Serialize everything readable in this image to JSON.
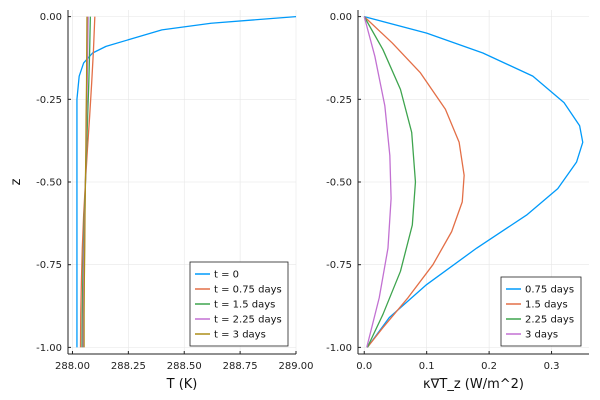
{
  "chart_data": [
    {
      "type": "line",
      "title": "",
      "xlabel": "T (K)",
      "ylabel": "z",
      "xlim": [
        287.98,
        289.0
      ],
      "ylim": [
        -1.02,
        0.02
      ],
      "xticks": [
        "288.00",
        "288.25",
        "288.50",
        "288.75",
        "289.00"
      ],
      "yticks": [
        "0.00",
        "-0.25",
        "-0.50",
        "-0.75",
        "-1.00"
      ],
      "grid": true,
      "legend_position": "bottom-right",
      "series": [
        {
          "name": "t = 0",
          "color": "#009AFA",
          "points": [
            [
              289.0,
              0.0
            ],
            [
              288.62,
              -0.02
            ],
            [
              288.4,
              -0.04
            ],
            [
              288.25,
              -0.07
            ],
            [
              288.15,
              -0.09
            ],
            [
              288.09,
              -0.11
            ],
            [
              288.05,
              -0.14
            ],
            [
              288.03,
              -0.18
            ],
            [
              288.02,
              -0.25
            ],
            [
              288.02,
              -0.5
            ],
            [
              288.02,
              -0.75
            ],
            [
              288.02,
              -1.0
            ]
          ]
        },
        {
          "name": "t = 0.75 days",
          "color": "#E36F47",
          "points": [
            [
              288.1,
              0.0
            ],
            [
              288.094,
              -0.1
            ],
            [
              288.086,
              -0.2
            ],
            [
              288.077,
              -0.3
            ],
            [
              288.067,
              -0.4
            ],
            [
              288.058,
              -0.5
            ],
            [
              288.05,
              -0.6
            ],
            [
              288.044,
              -0.7
            ],
            [
              288.04,
              -0.8
            ],
            [
              288.037,
              -0.9
            ],
            [
              288.036,
              -1.0
            ]
          ]
        },
        {
          "name": "t = 1.5 days",
          "color": "#3EA44E",
          "points": [
            [
              288.08,
              0.0
            ],
            [
              288.077,
              -0.1
            ],
            [
              288.073,
              -0.2
            ],
            [
              288.068,
              -0.3
            ],
            [
              288.063,
              -0.4
            ],
            [
              288.058,
              -0.5
            ],
            [
              288.053,
              -0.6
            ],
            [
              288.049,
              -0.7
            ],
            [
              288.046,
              -0.8
            ],
            [
              288.044,
              -0.9
            ],
            [
              288.043,
              -1.0
            ]
          ]
        },
        {
          "name": "t = 2.25 days",
          "color": "#C271D2",
          "points": [
            [
              288.07,
              0.0
            ],
            [
              288.068,
              -0.1
            ],
            [
              288.066,
              -0.2
            ],
            [
              288.063,
              -0.3
            ],
            [
              288.061,
              -0.4
            ],
            [
              288.058,
              -0.5
            ],
            [
              288.055,
              -0.6
            ],
            [
              288.052,
              -0.7
            ],
            [
              288.05,
              -0.8
            ],
            [
              288.049,
              -0.9
            ],
            [
              288.048,
              -1.0
            ]
          ]
        },
        {
          "name": "t = 3 days",
          "color": "#AC8D18",
          "points": [
            [
              288.065,
              0.0
            ],
            [
              288.064,
              -0.1
            ],
            [
              288.063,
              -0.2
            ],
            [
              288.061,
              -0.3
            ],
            [
              288.06,
              -0.4
            ],
            [
              288.058,
              -0.5
            ],
            [
              288.056,
              -0.6
            ],
            [
              288.055,
              -0.7
            ],
            [
              288.053,
              -0.8
            ],
            [
              288.052,
              -0.9
            ],
            [
              288.052,
              -1.0
            ]
          ]
        }
      ]
    },
    {
      "type": "line",
      "title": "",
      "xlabel": "κ∇T_z (W/m^2)",
      "ylabel": "",
      "xlim": [
        -0.01,
        0.36
      ],
      "ylim": [
        -1.02,
        0.02
      ],
      "xticks": [
        "0.0",
        "0.1",
        "0.2",
        "0.3"
      ],
      "yticks": [
        "0.00",
        "-0.25",
        "-0.50",
        "-0.75",
        "-1.00"
      ],
      "grid": true,
      "legend_position": "bottom-right",
      "series": [
        {
          "name": "0.75 days",
          "color": "#009AFA",
          "points": [
            [
              0.0,
              0.0
            ],
            [
              0.1,
              -0.05
            ],
            [
              0.19,
              -0.11
            ],
            [
              0.27,
              -0.18
            ],
            [
              0.32,
              -0.26
            ],
            [
              0.345,
              -0.33
            ],
            [
              0.35,
              -0.38
            ],
            [
              0.34,
              -0.44
            ],
            [
              0.31,
              -0.52
            ],
            [
              0.26,
              -0.6
            ],
            [
              0.18,
              -0.7
            ],
            [
              0.1,
              -0.81
            ],
            [
              0.04,
              -0.91
            ],
            [
              0.005,
              -1.0
            ]
          ]
        },
        {
          "name": "1.5 days",
          "color": "#E36F47",
          "points": [
            [
              0.0,
              0.0
            ],
            [
              0.045,
              -0.08
            ],
            [
              0.09,
              -0.17
            ],
            [
              0.13,
              -0.28
            ],
            [
              0.152,
              -0.38
            ],
            [
              0.16,
              -0.48
            ],
            [
              0.157,
              -0.56
            ],
            [
              0.14,
              -0.65
            ],
            [
              0.11,
              -0.75
            ],
            [
              0.07,
              -0.85
            ],
            [
              0.03,
              -0.94
            ],
            [
              0.005,
              -1.0
            ]
          ]
        },
        {
          "name": "2.25 days",
          "color": "#3EA44E",
          "points": [
            [
              0.0,
              0.0
            ],
            [
              0.03,
              -0.1
            ],
            [
              0.058,
              -0.22
            ],
            [
              0.076,
              -0.35
            ],
            [
              0.082,
              -0.5
            ],
            [
              0.077,
              -0.63
            ],
            [
              0.058,
              -0.77
            ],
            [
              0.03,
              -0.9
            ],
            [
              0.005,
              -1.0
            ]
          ]
        },
        {
          "name": "3 days",
          "color": "#C271D2",
          "points": [
            [
              0.0,
              0.0
            ],
            [
              0.017,
              -0.12
            ],
            [
              0.033,
              -0.27
            ],
            [
              0.041,
              -0.42
            ],
            [
              0.043,
              -0.55
            ],
            [
              0.038,
              -0.7
            ],
            [
              0.024,
              -0.85
            ],
            [
              0.004,
              -1.0
            ]
          ]
        }
      ]
    }
  ]
}
